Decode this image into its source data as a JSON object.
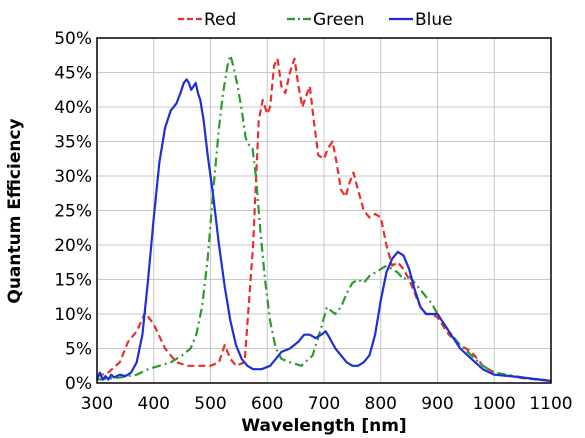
{
  "chart_data": {
    "type": "line",
    "title": "",
    "xlabel": "Wavelength [nm]",
    "ylabel": "Quantum Efficiency",
    "xlim": [
      300,
      1100
    ],
    "ylim": [
      0,
      50
    ],
    "xticks": [
      "300",
      "400",
      "500",
      "600",
      "700",
      "800",
      "900",
      "1000",
      "1100"
    ],
    "yticks": [
      "0%",
      "5%",
      "10%",
      "15%",
      "20%",
      "25%",
      "30%",
      "35%",
      "40%",
      "45%",
      "50%"
    ],
    "grid": true,
    "legend_position": "top",
    "series": [
      {
        "name": "Red",
        "color": "#e8302a",
        "dash": "dashed",
        "points": [
          [
            300,
            1.0
          ],
          [
            320,
            1.5
          ],
          [
            340,
            3.0
          ],
          [
            355,
            6.0
          ],
          [
            370,
            7.5
          ],
          [
            385,
            10.2
          ],
          [
            400,
            8.5
          ],
          [
            420,
            5.0
          ],
          [
            440,
            3.0
          ],
          [
            460,
            2.5
          ],
          [
            480,
            2.5
          ],
          [
            500,
            2.5
          ],
          [
            515,
            3.0
          ],
          [
            525,
            5.5
          ],
          [
            535,
            3.5
          ],
          [
            545,
            2.5
          ],
          [
            560,
            3.0
          ],
          [
            575,
            20.0
          ],
          [
            585,
            38.0
          ],
          [
            592,
            41.0
          ],
          [
            600,
            39.0
          ],
          [
            605,
            40.0
          ],
          [
            612,
            46.0
          ],
          [
            618,
            47.0
          ],
          [
            625,
            43.0
          ],
          [
            632,
            42.0
          ],
          [
            640,
            45.0
          ],
          [
            648,
            47.0
          ],
          [
            655,
            43.0
          ],
          [
            662,
            40.0
          ],
          [
            668,
            41.5
          ],
          [
            675,
            43.0
          ],
          [
            682,
            38.0
          ],
          [
            690,
            33.0
          ],
          [
            700,
            32.5
          ],
          [
            707,
            34.0
          ],
          [
            715,
            35.0
          ],
          [
            722,
            32.0
          ],
          [
            730,
            28.0
          ],
          [
            738,
            27.0
          ],
          [
            745,
            29.0
          ],
          [
            752,
            30.5
          ],
          [
            760,
            28.0
          ],
          [
            770,
            25.0
          ],
          [
            780,
            24.0
          ],
          [
            790,
            24.5
          ],
          [
            800,
            24.0
          ],
          [
            810,
            20.0
          ],
          [
            820,
            17.0
          ],
          [
            830,
            17.5
          ],
          [
            840,
            16.5
          ],
          [
            850,
            15.0
          ],
          [
            860,
            13.0
          ],
          [
            870,
            11.0
          ],
          [
            880,
            10.0
          ],
          [
            890,
            10.0
          ],
          [
            900,
            9.5
          ],
          [
            920,
            7.0
          ],
          [
            940,
            5.5
          ],
          [
            960,
            4.5
          ],
          [
            980,
            2.5
          ],
          [
            1000,
            1.5
          ],
          [
            1050,
            0.7
          ],
          [
            1100,
            0.3
          ]
        ]
      },
      {
        "name": "Green",
        "color": "#2e9a2e",
        "dash": "dashdot",
        "points": [
          [
            300,
            0.5
          ],
          [
            340,
            0.8
          ],
          [
            370,
            1.2
          ],
          [
            390,
            2.0
          ],
          [
            410,
            2.5
          ],
          [
            430,
            3.0
          ],
          [
            450,
            4.0
          ],
          [
            465,
            5.0
          ],
          [
            475,
            7.0
          ],
          [
            485,
            11.0
          ],
          [
            495,
            18.0
          ],
          [
            505,
            28.0
          ],
          [
            515,
            37.0
          ],
          [
            522,
            42.0
          ],
          [
            530,
            46.0
          ],
          [
            535,
            47.5
          ],
          [
            540,
            46.0
          ],
          [
            548,
            43.0
          ],
          [
            556,
            39.0
          ],
          [
            562,
            35.5
          ],
          [
            568,
            34.5
          ],
          [
            574,
            34.0
          ],
          [
            580,
            30.0
          ],
          [
            588,
            22.0
          ],
          [
            596,
            15.0
          ],
          [
            605,
            9.0
          ],
          [
            615,
            5.0
          ],
          [
            625,
            3.5
          ],
          [
            640,
            3.0
          ],
          [
            660,
            2.5
          ],
          [
            680,
            4.0
          ],
          [
            695,
            8.0
          ],
          [
            705,
            11.0
          ],
          [
            712,
            10.5
          ],
          [
            720,
            10.0
          ],
          [
            730,
            11.0
          ],
          [
            740,
            13.0
          ],
          [
            750,
            14.5
          ],
          [
            760,
            15.0
          ],
          [
            770,
            14.5
          ],
          [
            780,
            15.5
          ],
          [
            790,
            16.0
          ],
          [
            800,
            16.5
          ],
          [
            810,
            17.0
          ],
          [
            820,
            16.5
          ],
          [
            830,
            16.0
          ],
          [
            840,
            15.0
          ],
          [
            850,
            15.5
          ],
          [
            860,
            14.5
          ],
          [
            870,
            13.5
          ],
          [
            880,
            12.5
          ],
          [
            890,
            11.5
          ],
          [
            900,
            10.0
          ],
          [
            920,
            7.5
          ],
          [
            940,
            5.5
          ],
          [
            960,
            4.0
          ],
          [
            980,
            2.5
          ],
          [
            1000,
            1.5
          ],
          [
            1050,
            0.8
          ],
          [
            1100,
            0.3
          ]
        ]
      },
      {
        "name": "Blue",
        "color": "#1d2fd8",
        "dash": "solid",
        "points": [
          [
            300,
            0.5
          ],
          [
            305,
            1.5
          ],
          [
            310,
            0.5
          ],
          [
            315,
            1.0
          ],
          [
            320,
            0.5
          ],
          [
            325,
            1.2
          ],
          [
            330,
            0.8
          ],
          [
            340,
            1.2
          ],
          [
            350,
            1.0
          ],
          [
            360,
            1.5
          ],
          [
            370,
            3.0
          ],
          [
            380,
            7.0
          ],
          [
            390,
            15.0
          ],
          [
            400,
            24.0
          ],
          [
            410,
            32.0
          ],
          [
            420,
            37.0
          ],
          [
            430,
            39.5
          ],
          [
            440,
            40.5
          ],
          [
            447,
            42.0
          ],
          [
            453,
            43.5
          ],
          [
            458,
            44.0
          ],
          [
            462,
            43.5
          ],
          [
            466,
            42.5
          ],
          [
            470,
            43.0
          ],
          [
            474,
            43.5
          ],
          [
            478,
            42.0
          ],
          [
            482,
            41.0
          ],
          [
            488,
            38.0
          ],
          [
            495,
            33.0
          ],
          [
            505,
            27.0
          ],
          [
            515,
            20.0
          ],
          [
            525,
            14.0
          ],
          [
            535,
            9.0
          ],
          [
            545,
            5.5
          ],
          [
            555,
            3.5
          ],
          [
            565,
            2.5
          ],
          [
            575,
            2.0
          ],
          [
            590,
            2.0
          ],
          [
            605,
            2.5
          ],
          [
            615,
            3.5
          ],
          [
            625,
            4.5
          ],
          [
            640,
            5.0
          ],
          [
            655,
            6.0
          ],
          [
            665,
            7.0
          ],
          [
            675,
            7.0
          ],
          [
            685,
            6.5
          ],
          [
            695,
            7.0
          ],
          [
            703,
            7.5
          ],
          [
            710,
            6.5
          ],
          [
            720,
            5.0
          ],
          [
            730,
            4.0
          ],
          [
            740,
            3.0
          ],
          [
            750,
            2.5
          ],
          [
            760,
            2.5
          ],
          [
            770,
            3.0
          ],
          [
            780,
            4.0
          ],
          [
            790,
            7.0
          ],
          [
            800,
            12.0
          ],
          [
            810,
            16.0
          ],
          [
            820,
            18.0
          ],
          [
            830,
            19.0
          ],
          [
            840,
            18.5
          ],
          [
            850,
            16.5
          ],
          [
            860,
            13.5
          ],
          [
            870,
            11.0
          ],
          [
            880,
            10.0
          ],
          [
            890,
            10.0
          ],
          [
            900,
            10.0
          ],
          [
            920,
            7.5
          ],
          [
            940,
            5.0
          ],
          [
            960,
            3.5
          ],
          [
            980,
            2.0
          ],
          [
            1000,
            1.2
          ],
          [
            1050,
            0.8
          ],
          [
            1080,
            0.5
          ],
          [
            1100,
            0.3
          ]
        ]
      }
    ]
  }
}
